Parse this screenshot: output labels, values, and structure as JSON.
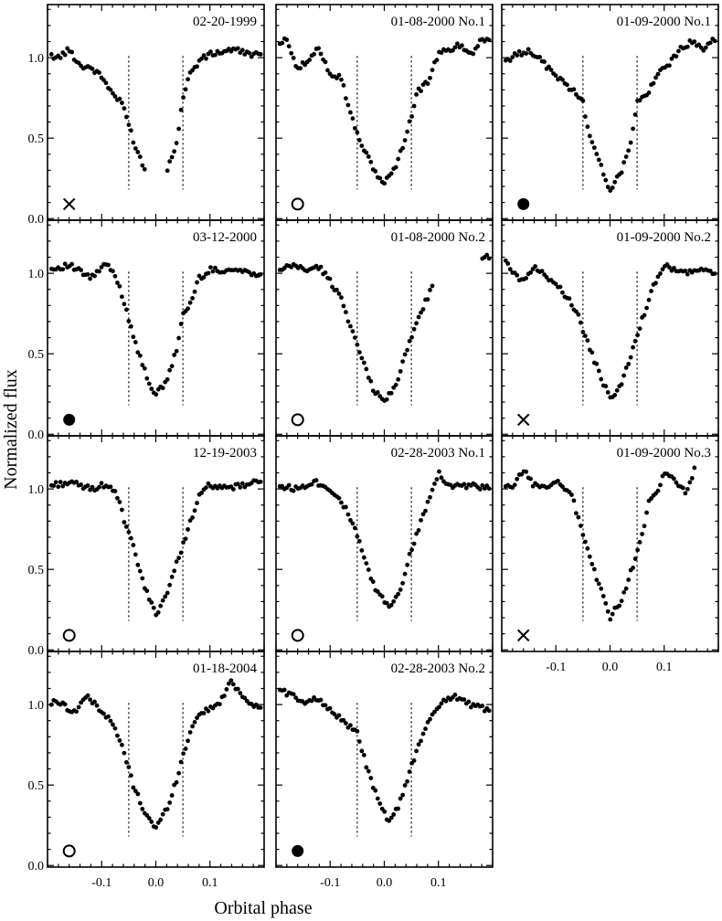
{
  "chart_data": {
    "type": "scatter",
    "xlabel": "Orbital phase",
    "ylabel": "Normalized flux",
    "xlim": [
      -0.2,
      0.2
    ],
    "ylim": [
      -0.01,
      1.33
    ],
    "xticks": [
      -0.1,
      0.0,
      0.1
    ],
    "xtick_labels": [
      "-0.1",
      "0.0",
      "0.1"
    ],
    "yticks": [
      0.0,
      0.5,
      1.0
    ],
    "ytick_labels": [
      "0.0",
      "0.5",
      "1.0"
    ],
    "eclipse_markers": [
      -0.05,
      0.05
    ],
    "panels": [
      {
        "label": "02-20-1999",
        "col": 0,
        "row": 0,
        "marker": "cross",
        "min_flux": 0.2,
        "min_phase": 0.0,
        "gap": [
          -0.02,
          0.02
        ],
        "profile": [
          [
            -0.2,
            1.02
          ],
          [
            -0.18,
            1.0
          ],
          [
            -0.16,
            1.05
          ],
          [
            -0.14,
            0.95
          ],
          [
            -0.12,
            0.94
          ],
          [
            -0.1,
            0.88
          ],
          [
            -0.08,
            0.78
          ],
          [
            -0.06,
            0.7
          ],
          [
            -0.04,
            0.47
          ],
          [
            -0.02,
            0.3
          ],
          [
            0.0,
            0.2
          ],
          [
            0.02,
            0.28
          ],
          [
            0.04,
            0.5
          ],
          [
            0.05,
            0.75
          ],
          [
            0.06,
            0.88
          ],
          [
            0.08,
            0.98
          ],
          [
            0.1,
            1.02
          ],
          [
            0.14,
            1.05
          ],
          [
            0.18,
            1.02
          ],
          [
            0.2,
            1.02
          ]
        ]
      },
      {
        "label": "03-12-2000",
        "col": 0,
        "row": 1,
        "marker": "filled",
        "min_flux": 0.25,
        "min_phase": 0.0,
        "profile": [
          [
            -0.2,
            1.02
          ],
          [
            -0.16,
            1.05
          ],
          [
            -0.12,
            0.97
          ],
          [
            -0.09,
            1.06
          ],
          [
            -0.07,
            0.95
          ],
          [
            -0.05,
            0.72
          ],
          [
            -0.03,
            0.48
          ],
          [
            -0.01,
            0.3
          ],
          [
            0.0,
            0.25
          ],
          [
            0.02,
            0.32
          ],
          [
            0.04,
            0.55
          ],
          [
            0.05,
            0.75
          ],
          [
            0.06,
            0.78
          ],
          [
            0.08,
            0.97
          ],
          [
            0.1,
            1.02
          ],
          [
            0.15,
            1.02
          ],
          [
            0.18,
            1.0
          ]
        ]
      },
      {
        "label": "12-19-2003",
        "col": 0,
        "row": 2,
        "marker": "open",
        "min_flux": 0.22,
        "min_phase": 0.0,
        "profile": [
          [
            -0.2,
            1.02
          ],
          [
            -0.16,
            1.04
          ],
          [
            -0.12,
            1.0
          ],
          [
            -0.09,
            1.03
          ],
          [
            -0.07,
            0.95
          ],
          [
            -0.06,
            0.82
          ],
          [
            -0.04,
            0.62
          ],
          [
            -0.02,
            0.38
          ],
          [
            0.0,
            0.22
          ],
          [
            0.02,
            0.35
          ],
          [
            0.04,
            0.55
          ],
          [
            0.06,
            0.76
          ],
          [
            0.08,
            0.95
          ],
          [
            0.1,
            1.03
          ],
          [
            0.12,
            1.0
          ],
          [
            0.16,
            1.02
          ],
          [
            0.2,
            1.05
          ]
        ]
      },
      {
        "label": "01-18-2004",
        "col": 0,
        "row": 3,
        "marker": "open",
        "min_flux": 0.23,
        "min_phase": 0.0,
        "profile": [
          [
            -0.2,
            1.0
          ],
          [
            -0.18,
            1.02
          ],
          [
            -0.15,
            0.95
          ],
          [
            -0.13,
            1.05
          ],
          [
            -0.11,
            1.0
          ],
          [
            -0.08,
            0.88
          ],
          [
            -0.06,
            0.72
          ],
          [
            -0.05,
            0.6
          ],
          [
            -0.04,
            0.48
          ],
          [
            -0.02,
            0.33
          ],
          [
            0.0,
            0.23
          ],
          [
            0.02,
            0.35
          ],
          [
            0.04,
            0.55
          ],
          [
            0.06,
            0.8
          ],
          [
            0.08,
            0.95
          ],
          [
            0.1,
            0.97
          ],
          [
            0.12,
            1.02
          ],
          [
            0.14,
            1.15
          ],
          [
            0.16,
            1.05
          ],
          [
            0.18,
            1.0
          ],
          [
            0.2,
            0.97
          ]
        ]
      },
      {
        "label": "01-08-2000 No.1",
        "col": 1,
        "row": 0,
        "marker": "open",
        "min_flux": 0.22,
        "min_phase": 0.0,
        "profile": [
          [
            -0.2,
            1.05
          ],
          [
            -0.18,
            1.12
          ],
          [
            -0.16,
            0.93
          ],
          [
            -0.14,
            0.98
          ],
          [
            -0.12,
            1.06
          ],
          [
            -0.1,
            0.9
          ],
          [
            -0.08,
            0.88
          ],
          [
            -0.06,
            0.62
          ],
          [
            -0.04,
            0.45
          ],
          [
            -0.02,
            0.3
          ],
          [
            0.0,
            0.22
          ],
          [
            0.02,
            0.32
          ],
          [
            0.04,
            0.5
          ],
          [
            0.06,
            0.78
          ],
          [
            0.08,
            0.85
          ],
          [
            0.1,
            1.02
          ],
          [
            0.12,
            1.05
          ],
          [
            0.14,
            1.08
          ],
          [
            0.16,
            1.02
          ],
          [
            0.18,
            1.12
          ],
          [
            0.2,
            1.1
          ]
        ]
      },
      {
        "label": "01-08-2000 No.2",
        "col": 1,
        "row": 1,
        "marker": "open",
        "min_flux": 0.2,
        "min_phase": 0.0,
        "gap": [
          0.09,
          0.18
        ],
        "profile": [
          [
            -0.2,
            1.0
          ],
          [
            -0.17,
            1.05
          ],
          [
            -0.14,
            1.02
          ],
          [
            -0.12,
            1.04
          ],
          [
            -0.1,
            0.95
          ],
          [
            -0.08,
            0.85
          ],
          [
            -0.06,
            0.65
          ],
          [
            -0.04,
            0.45
          ],
          [
            -0.02,
            0.28
          ],
          [
            0.0,
            0.2
          ],
          [
            0.02,
            0.3
          ],
          [
            0.04,
            0.5
          ],
          [
            0.06,
            0.7
          ],
          [
            0.08,
            0.85
          ],
          [
            0.1,
            1.0
          ],
          [
            0.12,
            1.02
          ],
          [
            0.14,
            1.05
          ],
          [
            0.16,
            1.1
          ]
        ]
      },
      {
        "label": "02-28-2003 No.1",
        "col": 1,
        "row": 2,
        "marker": "open",
        "min_flux": 0.27,
        "min_phase": 0.01,
        "profile": [
          [
            -0.2,
            1.02
          ],
          [
            -0.16,
            1.0
          ],
          [
            -0.13,
            1.05
          ],
          [
            -0.1,
            1.0
          ],
          [
            -0.08,
            0.93
          ],
          [
            -0.06,
            0.8
          ],
          [
            -0.04,
            0.6
          ],
          [
            -0.02,
            0.4
          ],
          [
            0.0,
            0.3
          ],
          [
            0.01,
            0.27
          ],
          [
            0.03,
            0.38
          ],
          [
            0.05,
            0.62
          ],
          [
            0.07,
            0.82
          ],
          [
            0.09,
            1.02
          ],
          [
            0.1,
            1.1
          ],
          [
            0.12,
            1.02
          ],
          [
            0.16,
            1.02
          ],
          [
            0.2,
            1.0
          ]
        ]
      },
      {
        "label": "02-28-2003 No.2",
        "col": 1,
        "row": 3,
        "marker": "filled",
        "min_flux": 0.26,
        "min_phase": 0.01,
        "profile": [
          [
            -0.2,
            1.1
          ],
          [
            -0.17,
            1.06
          ],
          [
            -0.15,
            1.0
          ],
          [
            -0.13,
            1.05
          ],
          [
            -0.1,
            0.97
          ],
          [
            -0.07,
            0.88
          ],
          [
            -0.05,
            0.82
          ],
          [
            -0.04,
            0.7
          ],
          [
            -0.02,
            0.48
          ],
          [
            0.0,
            0.32
          ],
          [
            0.01,
            0.26
          ],
          [
            0.03,
            0.4
          ],
          [
            0.05,
            0.62
          ],
          [
            0.07,
            0.8
          ],
          [
            0.09,
            0.95
          ],
          [
            0.11,
            1.03
          ],
          [
            0.13,
            1.05
          ],
          [
            0.16,
            1.0
          ],
          [
            0.18,
            0.98
          ],
          [
            0.2,
            0.96
          ]
        ]
      },
      {
        "label": "01-09-2000 No.1",
        "col": 2,
        "row": 0,
        "marker": "filled",
        "min_flux": 0.18,
        "min_phase": 0.0,
        "profile": [
          [
            -0.2,
            0.97
          ],
          [
            -0.17,
            1.02
          ],
          [
            -0.15,
            1.05
          ],
          [
            -0.13,
            0.99
          ],
          [
            -0.11,
            0.92
          ],
          [
            -0.09,
            0.86
          ],
          [
            -0.07,
            0.8
          ],
          [
            -0.05,
            0.72
          ],
          [
            -0.04,
            0.55
          ],
          [
            -0.02,
            0.35
          ],
          [
            0.0,
            0.18
          ],
          [
            0.02,
            0.28
          ],
          [
            0.04,
            0.5
          ],
          [
            0.05,
            0.72
          ],
          [
            0.07,
            0.78
          ],
          [
            0.09,
            0.9
          ],
          [
            0.11,
            0.97
          ],
          [
            0.13,
            1.05
          ],
          [
            0.15,
            1.1
          ],
          [
            0.17,
            1.05
          ],
          [
            0.19,
            1.12
          ]
        ]
      },
      {
        "label": "01-09-2000 No.2",
        "col": 2,
        "row": 1,
        "marker": "cross",
        "min_flux": 0.22,
        "min_phase": 0.0,
        "profile": [
          [
            -0.2,
            1.15
          ],
          [
            -0.18,
            1.0
          ],
          [
            -0.16,
            0.95
          ],
          [
            -0.14,
            1.05
          ],
          [
            -0.12,
            0.98
          ],
          [
            -0.1,
            0.95
          ],
          [
            -0.08,
            0.85
          ],
          [
            -0.06,
            0.75
          ],
          [
            -0.04,
            0.55
          ],
          [
            -0.02,
            0.38
          ],
          [
            0.0,
            0.22
          ],
          [
            0.02,
            0.3
          ],
          [
            0.04,
            0.5
          ],
          [
            0.06,
            0.72
          ],
          [
            0.08,
            0.92
          ],
          [
            0.1,
            1.05
          ],
          [
            0.13,
            1.0
          ],
          [
            0.16,
            1.02
          ],
          [
            0.2,
            1.0
          ]
        ]
      },
      {
        "label": "01-09-2000 No.3",
        "col": 2,
        "row": 2,
        "marker": "cross",
        "min_flux": 0.2,
        "min_phase": 0.0,
        "xmax_data": 0.16,
        "profile": [
          [
            -0.2,
            1.02
          ],
          [
            -0.18,
            1.0
          ],
          [
            -0.16,
            1.12
          ],
          [
            -0.14,
            1.02
          ],
          [
            -0.11,
            1.02
          ],
          [
            -0.09,
            1.04
          ],
          [
            -0.07,
            0.95
          ],
          [
            -0.05,
            0.72
          ],
          [
            -0.03,
            0.5
          ],
          [
            -0.01,
            0.3
          ],
          [
            0.0,
            0.2
          ],
          [
            0.02,
            0.3
          ],
          [
            0.04,
            0.5
          ],
          [
            0.06,
            0.72
          ],
          [
            0.07,
            0.9
          ],
          [
            0.09,
            1.0
          ],
          [
            0.1,
            1.1
          ],
          [
            0.12,
            1.05
          ],
          [
            0.14,
            0.98
          ],
          [
            0.16,
            1.15
          ]
        ]
      }
    ]
  }
}
